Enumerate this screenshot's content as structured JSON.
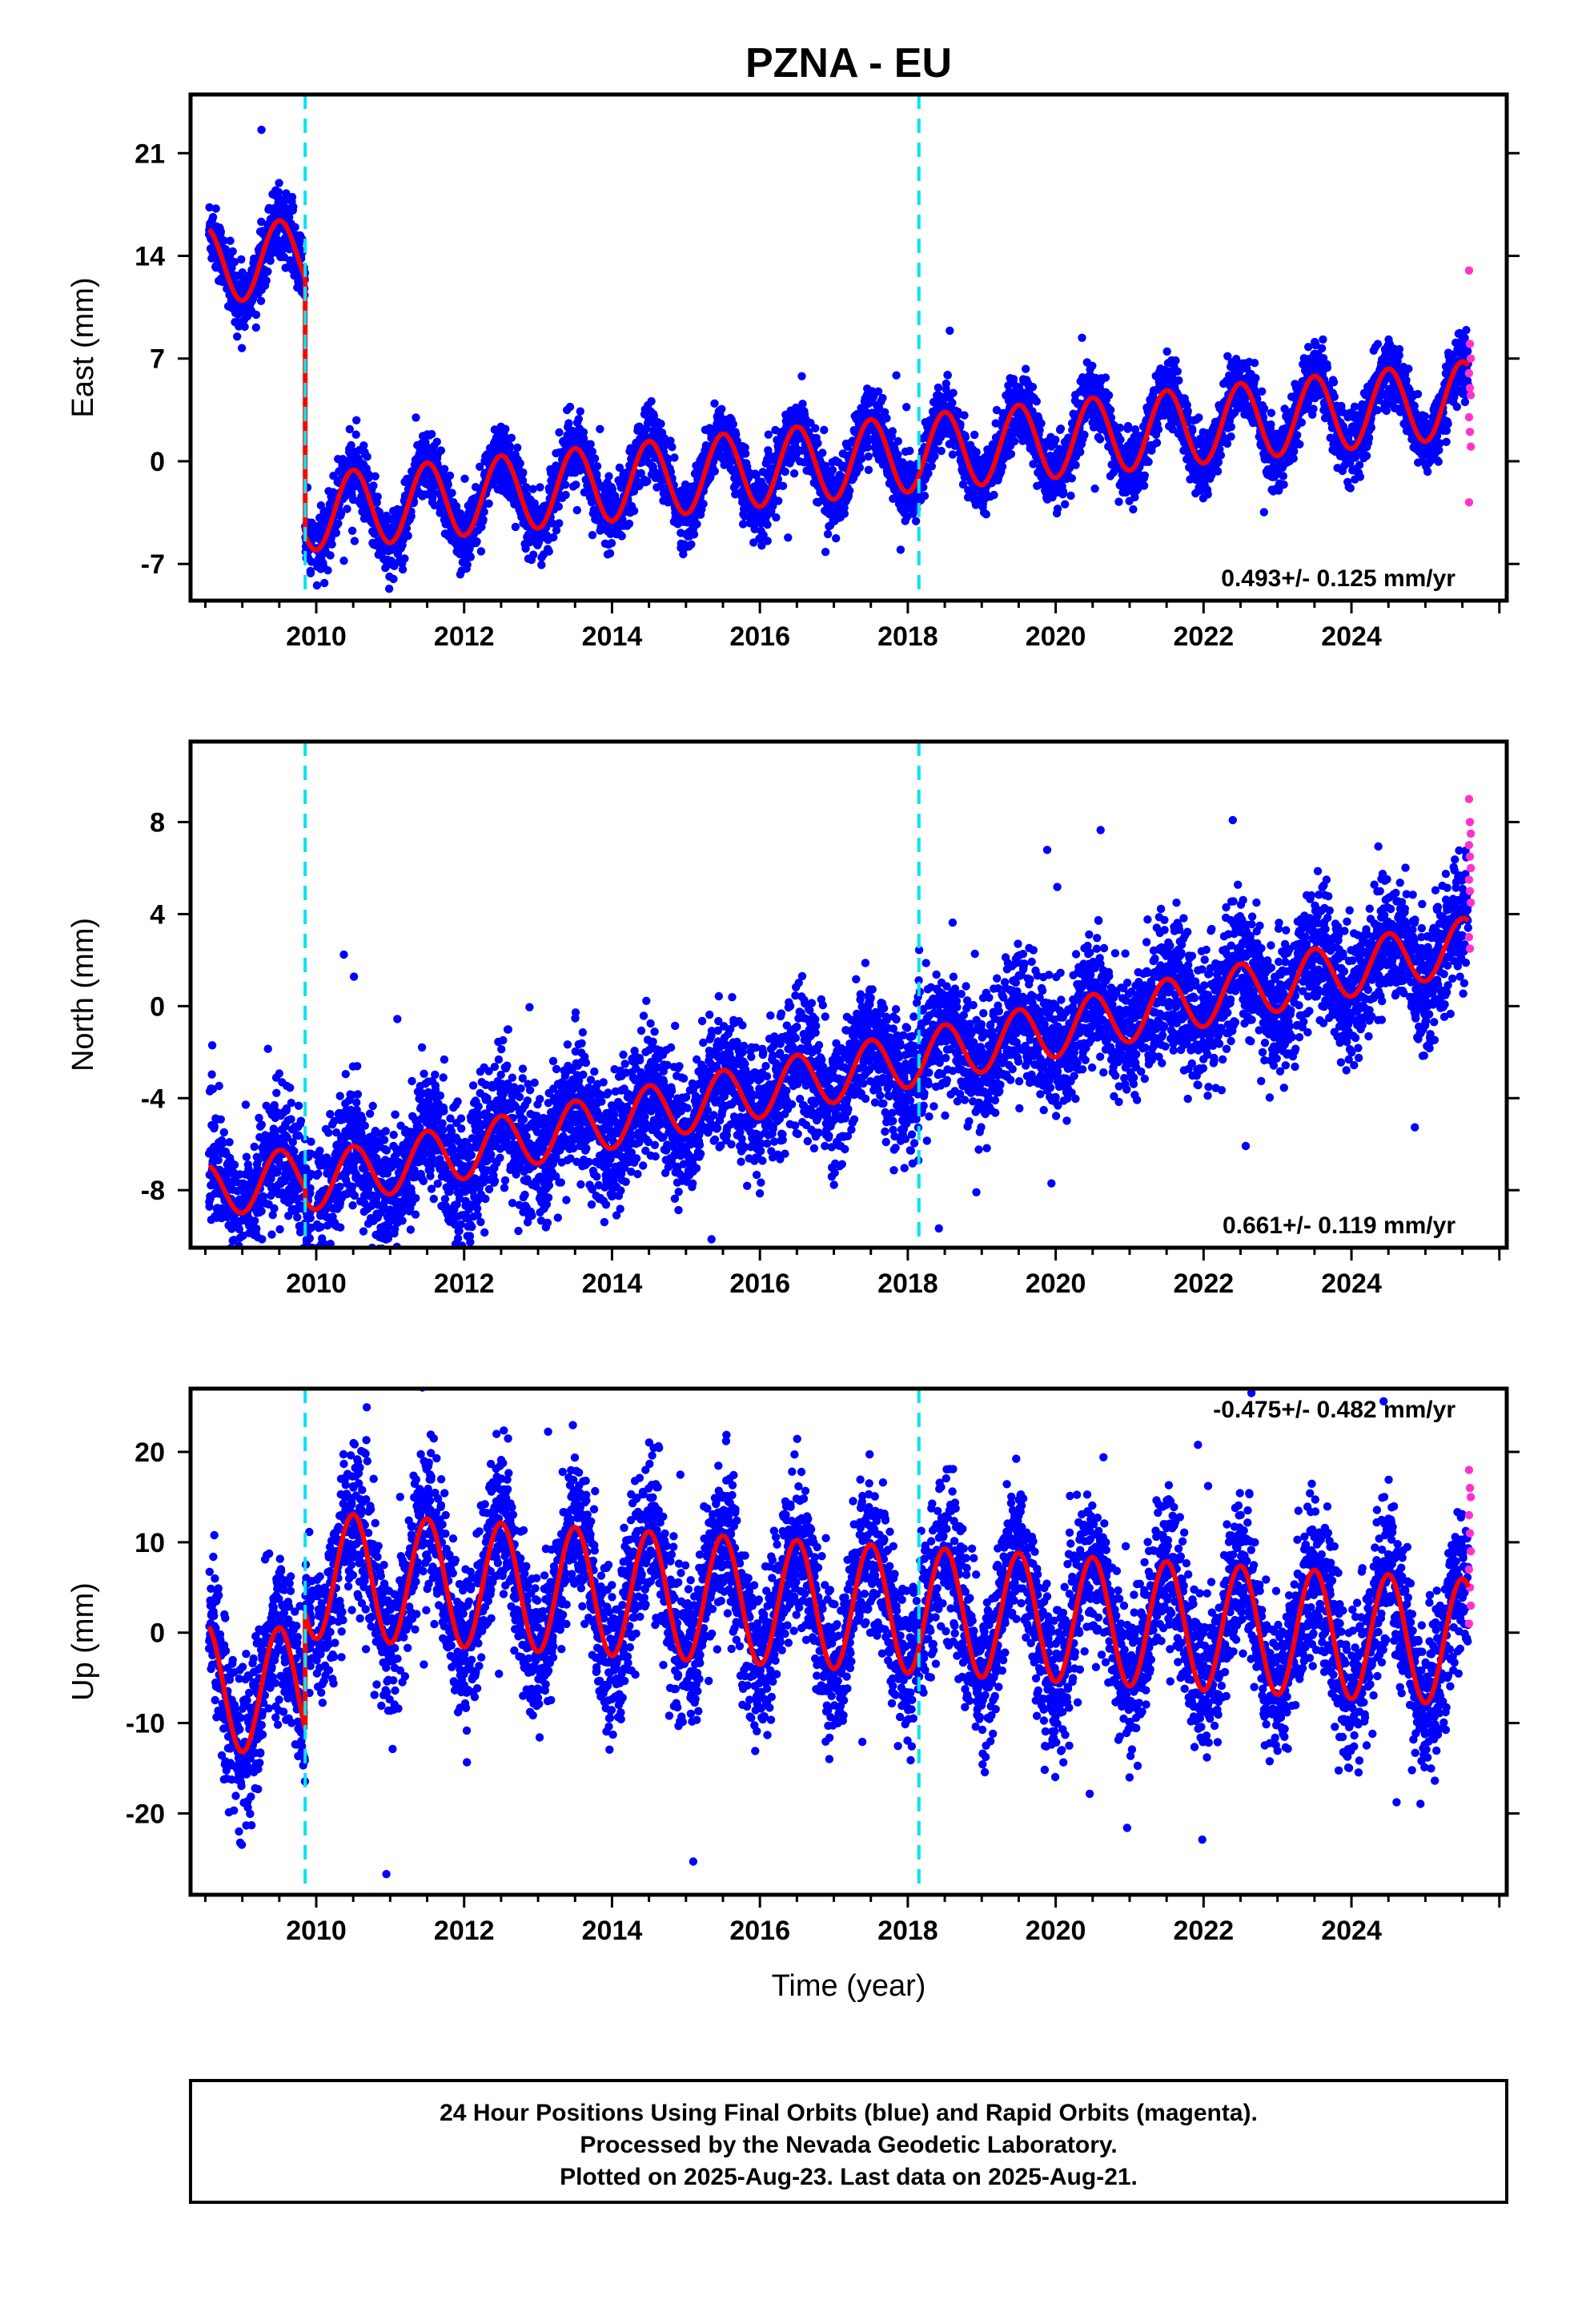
{
  "title": "PZNA - EU",
  "colors": {
    "final_orbits": "#0000ff",
    "rapid_orbits": "#ff33cc",
    "model": "#ff0000",
    "equipment_change": "#00e5ee"
  },
  "chart_data": [
    {
      "type": "scatter",
      "ylabel": "East (mm)",
      "xlim": [
        2008.3,
        2026.1
      ],
      "ylim": [
        -9.5,
        25
      ],
      "yticks": [
        -7,
        0,
        7,
        14,
        21
      ],
      "xticks": [
        2010,
        2012,
        2014,
        2016,
        2018,
        2020,
        2022,
        2024
      ],
      "breaks": [
        2009.85,
        2018.15
      ],
      "rate": "0.493+/- 0.125 mm/yr",
      "rate_position": "bottom-right",
      "series": [
        {
          "role": "final",
          "model": {
            "base": 0.0,
            "offset_pre": 17.5,
            "amp": 2.6,
            "slope": 0.493,
            "noise": 1.1
          }
        },
        {
          "role": "rapid",
          "values": [
            13.0,
            8.0,
            7.0,
            6.0,
            5.0,
            4.5,
            3.0,
            2.0,
            1.0,
            -2.8
          ]
        }
      ]
    },
    {
      "type": "scatter",
      "ylabel": "North (mm)",
      "xlim": [
        2008.3,
        2026.1
      ],
      "ylim": [
        -10.5,
        11.5
      ],
      "yticks": [
        -8,
        -4,
        0,
        4,
        8
      ],
      "xticks": [
        2010,
        2012,
        2014,
        2016,
        2018,
        2020,
        2022,
        2024
      ],
      "breaks": [
        2009.85,
        2018.15
      ],
      "rate": "0.661+/- 0.119 mm/yr",
      "rate_position": "bottom-right",
      "series": [
        {
          "role": "final",
          "model": {
            "base": -3.0,
            "offset_pre": 0.5,
            "amp": 1.2,
            "slope": 0.661,
            "noise": 1.4
          }
        },
        {
          "role": "rapid",
          "values": [
            9.0,
            8.0,
            7.5,
            7.0,
            6.5,
            6.0,
            5.5,
            5.0,
            4.5,
            3.0,
            2.5
          ]
        }
      ]
    },
    {
      "type": "scatter",
      "ylabel": "Up (mm)",
      "xlim": [
        2008.3,
        2026.1
      ],
      "ylim": [
        -29,
        27
      ],
      "yticks": [
        -20,
        -10,
        0,
        10,
        20
      ],
      "xticks": [
        2010,
        2012,
        2014,
        2016,
        2018,
        2020,
        2022,
        2024
      ],
      "breaks": [
        2009.85,
        2018.15
      ],
      "rate": "-0.475+/- 0.482 mm/yr",
      "rate_position": "top-right",
      "xlabel": "Time (year)",
      "series": [
        {
          "role": "final",
          "model": {
            "base": 3.0,
            "offset_pre": -13.0,
            "amp": 7.0,
            "slope": -0.475,
            "noise": 4.2
          }
        },
        {
          "role": "rapid",
          "values": [
            18.0,
            16.0,
            15.0,
            13.0,
            11.0,
            9.0,
            7.0,
            5.0,
            3.0,
            1.0
          ]
        }
      ]
    }
  ],
  "footer": {
    "line1": "24 Hour Positions Using Final Orbits (blue) and Rapid Orbits (magenta).",
    "line2": "Processed by the Nevada Geodetic Laboratory.",
    "line3": "Plotted on 2025-Aug-23. Last data on 2025-Aug-21."
  }
}
